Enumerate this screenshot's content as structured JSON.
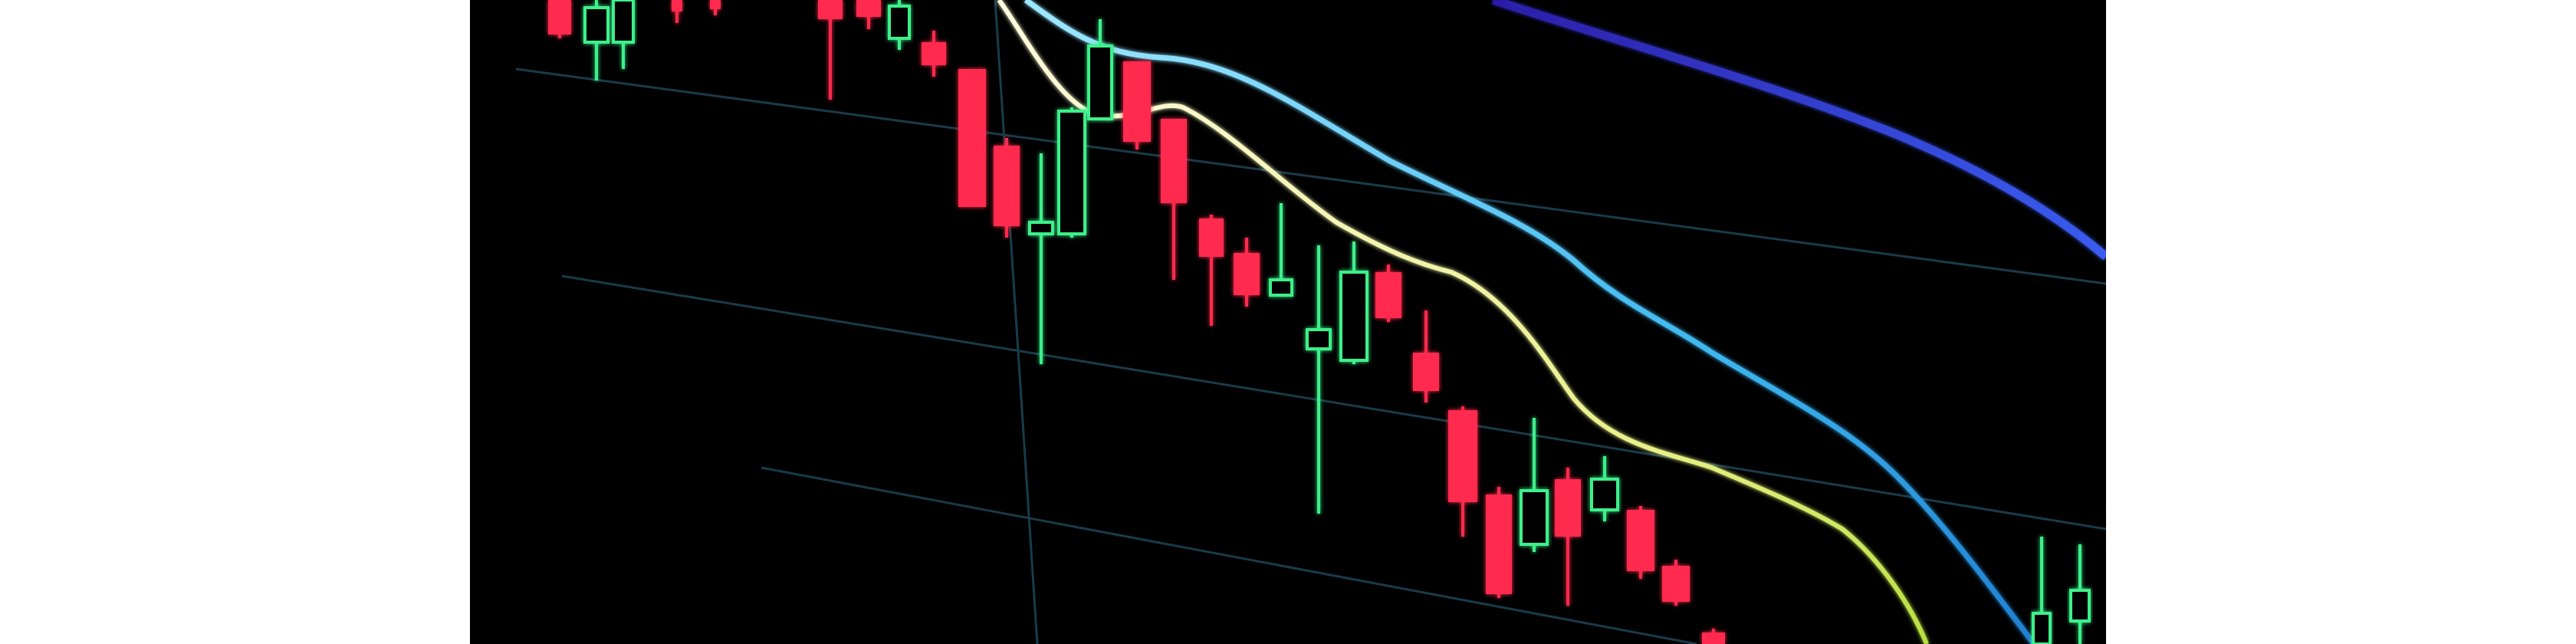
{
  "photo": {
    "subject": "candlestick-chart-on-screen",
    "colors": {
      "background": "#000000",
      "bullish": "#3ef08a",
      "bearish": "#ff2a4d",
      "grid": "#1f4a5c",
      "fast_average": "#f5f2b8",
      "mid_average": "#59d0f5",
      "slow_average": "#3a36d8"
    }
  }
}
